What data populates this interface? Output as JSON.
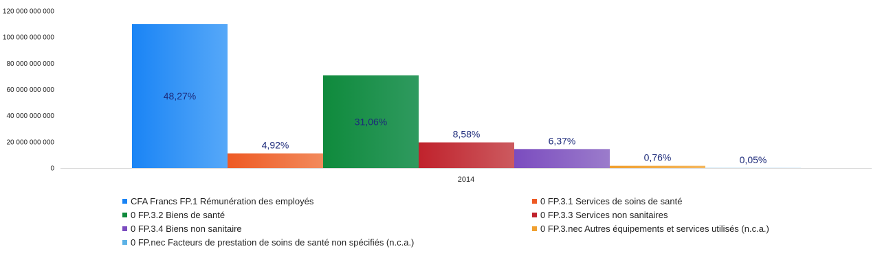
{
  "chart_data": {
    "type": "bar",
    "categories": [
      "2014"
    ],
    "ylim": [
      0,
      120000000000
    ],
    "yticks": [
      {
        "value": 0,
        "label": "0"
      },
      {
        "value": 20000000000,
        "label": "20 000 000 000"
      },
      {
        "value": 40000000000,
        "label": "40 000 000 000"
      },
      {
        "value": 60000000000,
        "label": "60 000 000 000"
      },
      {
        "value": 80000000000,
        "label": "80 000 000 000"
      },
      {
        "value": 100000000000,
        "label": "100 000 000 000"
      },
      {
        "value": 120000000000,
        "label": "120 000 000 000"
      }
    ],
    "grid": false,
    "legend_position": "bottom",
    "series": [
      {
        "name": "CFA Francs FP.1 Rémunération des employés",
        "value": 110000000000,
        "label": "48,27%",
        "color_start": "#1a84f5",
        "color_end": "#56a8f8"
      },
      {
        "name": "0 FP.3.1 Services de soins de santé",
        "value": 11200000000,
        "label": "4,92%",
        "color_start": "#ee5a24",
        "color_end": "#f28a5c"
      },
      {
        "name": "0 FP.3.2 Biens de santé",
        "value": 70800000000,
        "label": "31,06%",
        "color_start": "#0f8a3c",
        "color_end": "#2f9a5f"
      },
      {
        "name": "0 FP.3.3 Services non sanitaires",
        "value": 19600000000,
        "label": "8,58%",
        "color_start": "#c0222c",
        "color_end": "#cc5a5f"
      },
      {
        "name": "0 FP.3.4 Biens non sanitaire",
        "value": 14500000000,
        "label": "6,37%",
        "color_start": "#7b4cbf",
        "color_end": "#9b7ccb"
      },
      {
        "name": "0 FP.3.nec Autres équipements et services utilisés (n.c.a.)",
        "value": 1730000000,
        "label": "0,76%",
        "color_start": "#f0a030",
        "color_end": "#f4b860"
      },
      {
        "name": "0 FP.nec Facteurs de prestation de soins de santé non spécifiés (n.c.a.)",
        "value": 114000000,
        "label": "0,05%",
        "color_start": "#5cb2e6",
        "color_end": "#8fcaf0"
      }
    ]
  }
}
